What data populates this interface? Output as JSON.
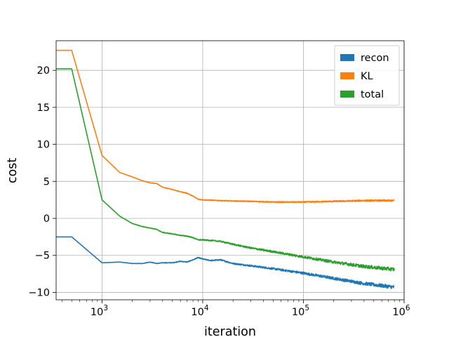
{
  "chart_data": {
    "type": "line",
    "title": "",
    "xlabel": "iteration",
    "ylabel": "cost",
    "xscale": "log",
    "xlim": [
      350,
      1000000
    ],
    "ylim": [
      -11,
      24
    ],
    "grid": true,
    "legend_position": "top-right",
    "x_ticks": [
      {
        "value": 1000,
        "base": "10",
        "exp": "3"
      },
      {
        "value": 10000,
        "base": "10",
        "exp": "4"
      },
      {
        "value": 100000,
        "base": "10",
        "exp": "5"
      },
      {
        "value": 1000000,
        "base": "10",
        "exp": "6"
      }
    ],
    "y_ticks": [
      {
        "value": -10,
        "label": "−10"
      },
      {
        "value": -5,
        "label": "−5"
      },
      {
        "value": 0,
        "label": "0"
      },
      {
        "value": 5,
        "label": "5"
      },
      {
        "value": 10,
        "label": "10"
      },
      {
        "value": 15,
        "label": "15"
      },
      {
        "value": 20,
        "label": "20"
      }
    ],
    "series": [
      {
        "name": "recon",
        "color": "#1f77b4",
        "noise": [
          0,
          0,
          0.06,
          0.16,
          0.26
        ],
        "points": [
          [
            350,
            -2.5
          ],
          [
            500,
            -2.5
          ],
          [
            1000,
            -6.0
          ],
          [
            1500,
            -5.9
          ],
          [
            2000,
            -6.1
          ],
          [
            2500,
            -6.1
          ],
          [
            3000,
            -5.9
          ],
          [
            3500,
            -6.1
          ],
          [
            4000,
            -6.0
          ],
          [
            5000,
            -6.0
          ],
          [
            6000,
            -5.8
          ],
          [
            7000,
            -5.9
          ],
          [
            8000,
            -5.6
          ],
          [
            9000,
            -5.3
          ],
          [
            10000,
            -5.5
          ],
          [
            12000,
            -5.7
          ],
          [
            15000,
            -5.6
          ],
          [
            20000,
            -6.1
          ],
          [
            30000,
            -6.4
          ],
          [
            50000,
            -6.8
          ],
          [
            100000,
            -7.4
          ],
          [
            200000,
            -8.1
          ],
          [
            400000,
            -8.8
          ],
          [
            800000,
            -9.3
          ]
        ]
      },
      {
        "name": "KL",
        "color": "#ff7f0e",
        "noise": [
          0,
          0,
          0.05,
          0.08,
          0.12
        ],
        "points": [
          [
            350,
            22.7
          ],
          [
            500,
            22.7
          ],
          [
            1000,
            8.5
          ],
          [
            1500,
            6.2
          ],
          [
            2000,
            5.6
          ],
          [
            2500,
            5.1
          ],
          [
            3000,
            4.8
          ],
          [
            3500,
            4.7
          ],
          [
            4000,
            4.2
          ],
          [
            5000,
            3.9
          ],
          [
            6000,
            3.6
          ],
          [
            7000,
            3.4
          ],
          [
            8000,
            3.0
          ],
          [
            9000,
            2.6
          ],
          [
            10000,
            2.5
          ],
          [
            15000,
            2.4
          ],
          [
            20000,
            2.35
          ],
          [
            30000,
            2.3
          ],
          [
            50000,
            2.2
          ],
          [
            100000,
            2.2
          ],
          [
            200000,
            2.3
          ],
          [
            400000,
            2.4
          ],
          [
            800000,
            2.4
          ]
        ]
      },
      {
        "name": "total",
        "color": "#2ca02c",
        "noise": [
          0,
          0,
          0.07,
          0.16,
          0.26
        ],
        "points": [
          [
            350,
            20.2
          ],
          [
            500,
            20.2
          ],
          [
            1000,
            2.5
          ],
          [
            1500,
            0.3
          ],
          [
            2000,
            -0.7
          ],
          [
            2500,
            -1.1
          ],
          [
            3000,
            -1.3
          ],
          [
            3500,
            -1.5
          ],
          [
            4000,
            -1.9
          ],
          [
            5000,
            -2.1
          ],
          [
            6000,
            -2.3
          ],
          [
            7000,
            -2.4
          ],
          [
            8000,
            -2.6
          ],
          [
            9000,
            -2.9
          ],
          [
            10000,
            -2.9
          ],
          [
            15000,
            -3.1
          ],
          [
            20000,
            -3.5
          ],
          [
            30000,
            -4.0
          ],
          [
            50000,
            -4.5
          ],
          [
            100000,
            -5.2
          ],
          [
            200000,
            -5.9
          ],
          [
            400000,
            -6.5
          ],
          [
            800000,
            -6.9
          ]
        ]
      }
    ]
  }
}
